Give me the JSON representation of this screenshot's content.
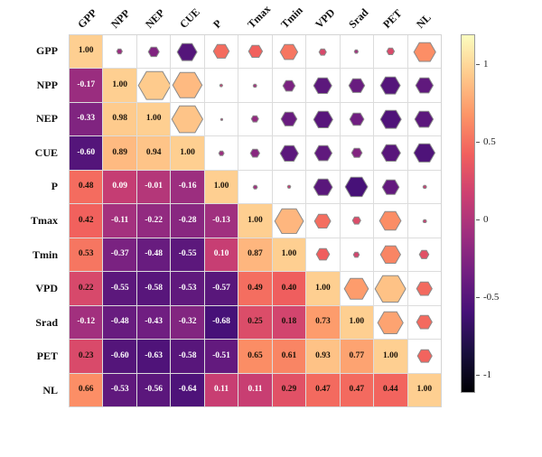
{
  "figure": {
    "description": "Correlation matrix: lower triangle colored squares with correlation coefficients, upper triangle hexagons sized and colored by correlation"
  },
  "chart_data": {
    "type": "heatmap",
    "subtype": "correlation-matrix",
    "title": "",
    "variables": [
      "GPP",
      "NPP",
      "NEP",
      "CUE",
      "P",
      "Tmax",
      "Tmin",
      "VPD",
      "Srad",
      "PET",
      "NL"
    ],
    "matrix": [
      [
        1.0,
        -0.17,
        -0.33,
        -0.6,
        0.48,
        0.42,
        0.53,
        0.22,
        -0.12,
        0.23,
        0.66
      ],
      [
        -0.17,
        1.0,
        0.98,
        0.89,
        0.09,
        -0.11,
        -0.37,
        -0.55,
        -0.48,
        -0.6,
        -0.53
      ],
      [
        -0.33,
        0.98,
        1.0,
        0.94,
        -0.01,
        -0.22,
        -0.48,
        -0.58,
        -0.43,
        -0.63,
        -0.56
      ],
      [
        -0.6,
        0.89,
        0.94,
        1.0,
        -0.16,
        -0.28,
        -0.55,
        -0.53,
        -0.32,
        -0.58,
        -0.64
      ],
      [
        0.48,
        0.09,
        -0.01,
        -0.16,
        1.0,
        -0.13,
        0.1,
        -0.57,
        -0.68,
        -0.51,
        0.11
      ],
      [
        0.42,
        -0.11,
        -0.22,
        -0.28,
        -0.13,
        1.0,
        0.87,
        0.49,
        0.25,
        0.65,
        0.11
      ],
      [
        0.53,
        -0.37,
        -0.48,
        -0.55,
        0.1,
        0.87,
        1.0,
        0.4,
        0.18,
        0.61,
        0.29
      ],
      [
        0.22,
        -0.55,
        -0.58,
        -0.53,
        -0.57,
        0.49,
        0.4,
        1.0,
        0.73,
        0.93,
        0.47
      ],
      [
        -0.12,
        -0.48,
        -0.43,
        -0.32,
        -0.68,
        0.25,
        0.18,
        0.73,
        1.0,
        0.77,
        0.47
      ],
      [
        0.23,
        -0.6,
        -0.63,
        -0.58,
        -0.51,
        0.65,
        0.61,
        0.93,
        0.77,
        1.0,
        0.44
      ],
      [
        0.66,
        -0.53,
        -0.56,
        -0.64,
        0.11,
        0.11,
        0.29,
        0.47,
        0.47,
        0.44,
        1.0
      ]
    ],
    "value_decimals": 2,
    "layout": {
      "lower_triangle": "colored cells with numeric correlation values",
      "diagonal": "colored cells with value 1.00",
      "upper_triangle": "hexagon markers, size proportional to absolute correlation",
      "legend_position": "right colorbar",
      "grid": true
    },
    "colormap": {
      "name": "magma",
      "vmin": -1.25,
      "vmax": 1.25,
      "stops": [
        {
          "t": 0.0,
          "color": "#000004"
        },
        {
          "t": 0.1111,
          "color": "#180F3E"
        },
        {
          "t": 0.2222,
          "color": "#451077"
        },
        {
          "t": 0.3333,
          "color": "#721F81"
        },
        {
          "t": 0.4444,
          "color": "#9F2F7F"
        },
        {
          "t": 0.5556,
          "color": "#CD4071"
        },
        {
          "t": 0.6667,
          "color": "#F1605D"
        },
        {
          "t": 0.7778,
          "color": "#FD9567"
        },
        {
          "t": 0.8889,
          "color": "#FECA8C"
        },
        {
          "t": 1.0,
          "color": "#FCFDBF"
        }
      ]
    },
    "colorbar": {
      "tick_labels": [
        "1",
        "0.5",
        "0",
        "-0.5",
        "-1"
      ],
      "tick_values": [
        1,
        0.5,
        0,
        -0.5,
        -1
      ]
    },
    "style_colors": {
      "gridline": "#dcdcdc",
      "hexagon_stroke": "#8a8a8a",
      "text_dark": "#1a1208",
      "text_light": "#ffffff"
    }
  }
}
